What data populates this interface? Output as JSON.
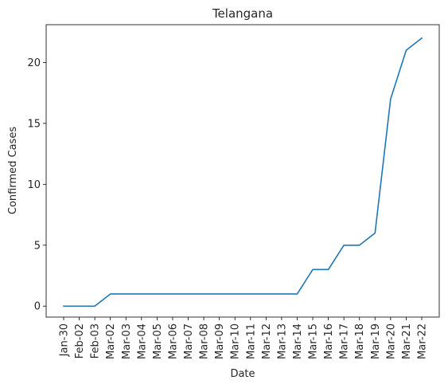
{
  "chart_data": {
    "type": "line",
    "title": "Telangana",
    "xlabel": "Date",
    "ylabel": "Confirmed Cases",
    "categories": [
      "Jan-30",
      "Feb-02",
      "Feb-03",
      "Mar-02",
      "Mar-03",
      "Mar-04",
      "Mar-05",
      "Mar-06",
      "Mar-07",
      "Mar-08",
      "Mar-09",
      "Mar-10",
      "Mar-11",
      "Mar-12",
      "Mar-13",
      "Mar-14",
      "Mar-15",
      "Mar-16",
      "Mar-17",
      "Mar-18",
      "Mar-19",
      "Mar-20",
      "Mar-21",
      "Mar-22"
    ],
    "series": [
      {
        "values": [
          0,
          0,
          0,
          1,
          1,
          1,
          1,
          1,
          1,
          1,
          1,
          1,
          1,
          1,
          1,
          1,
          3,
          3,
          5,
          5,
          6,
          17,
          21,
          22
        ],
        "color": "#1f77b4"
      }
    ],
    "yticks": [
      0,
      5,
      10,
      15,
      20
    ],
    "ylim": [
      -0.9,
      23.1
    ],
    "grid": false
  }
}
